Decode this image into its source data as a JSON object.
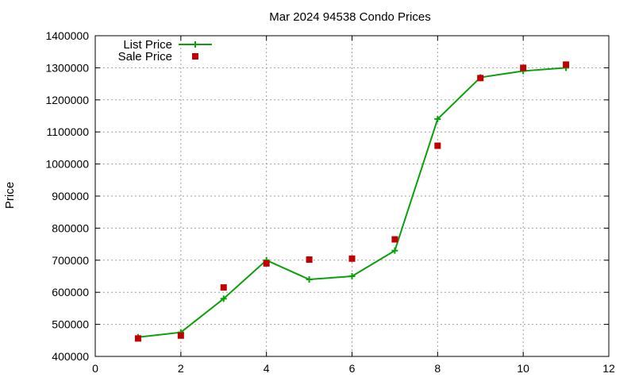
{
  "chart_data": {
    "type": "line",
    "title": "Mar 2024 94538 Condo Prices",
    "xlabel": "",
    "ylabel": "Price",
    "xlim": [
      0,
      12
    ],
    "ylim": [
      400000,
      1400000
    ],
    "xticks": [
      0,
      2,
      4,
      6,
      8,
      10,
      12
    ],
    "yticks": [
      400000,
      500000,
      600000,
      700000,
      800000,
      900000,
      1000000,
      1100000,
      1200000,
      1300000,
      1400000
    ],
    "grid": true,
    "legend_position": "top-left",
    "series": [
      {
        "name": "List Price",
        "style": "line-with-plus-markers",
        "color": "#0aa00a",
        "x": [
          1,
          2,
          3,
          4,
          5,
          6,
          7,
          8,
          9,
          10,
          11
        ],
        "values": [
          460000,
          475000,
          580000,
          700000,
          640000,
          650000,
          730000,
          1140000,
          1270000,
          1290000,
          1300000
        ]
      },
      {
        "name": "Sale Price",
        "style": "square-markers",
        "color": "#c00000",
        "x": [
          1,
          2,
          3,
          4,
          5,
          6,
          7,
          8,
          9,
          10,
          11
        ],
        "values": [
          456000,
          465000,
          615000,
          690000,
          702000,
          705000,
          765000,
          1057000,
          1268000,
          1300000,
          1310000
        ]
      }
    ]
  }
}
